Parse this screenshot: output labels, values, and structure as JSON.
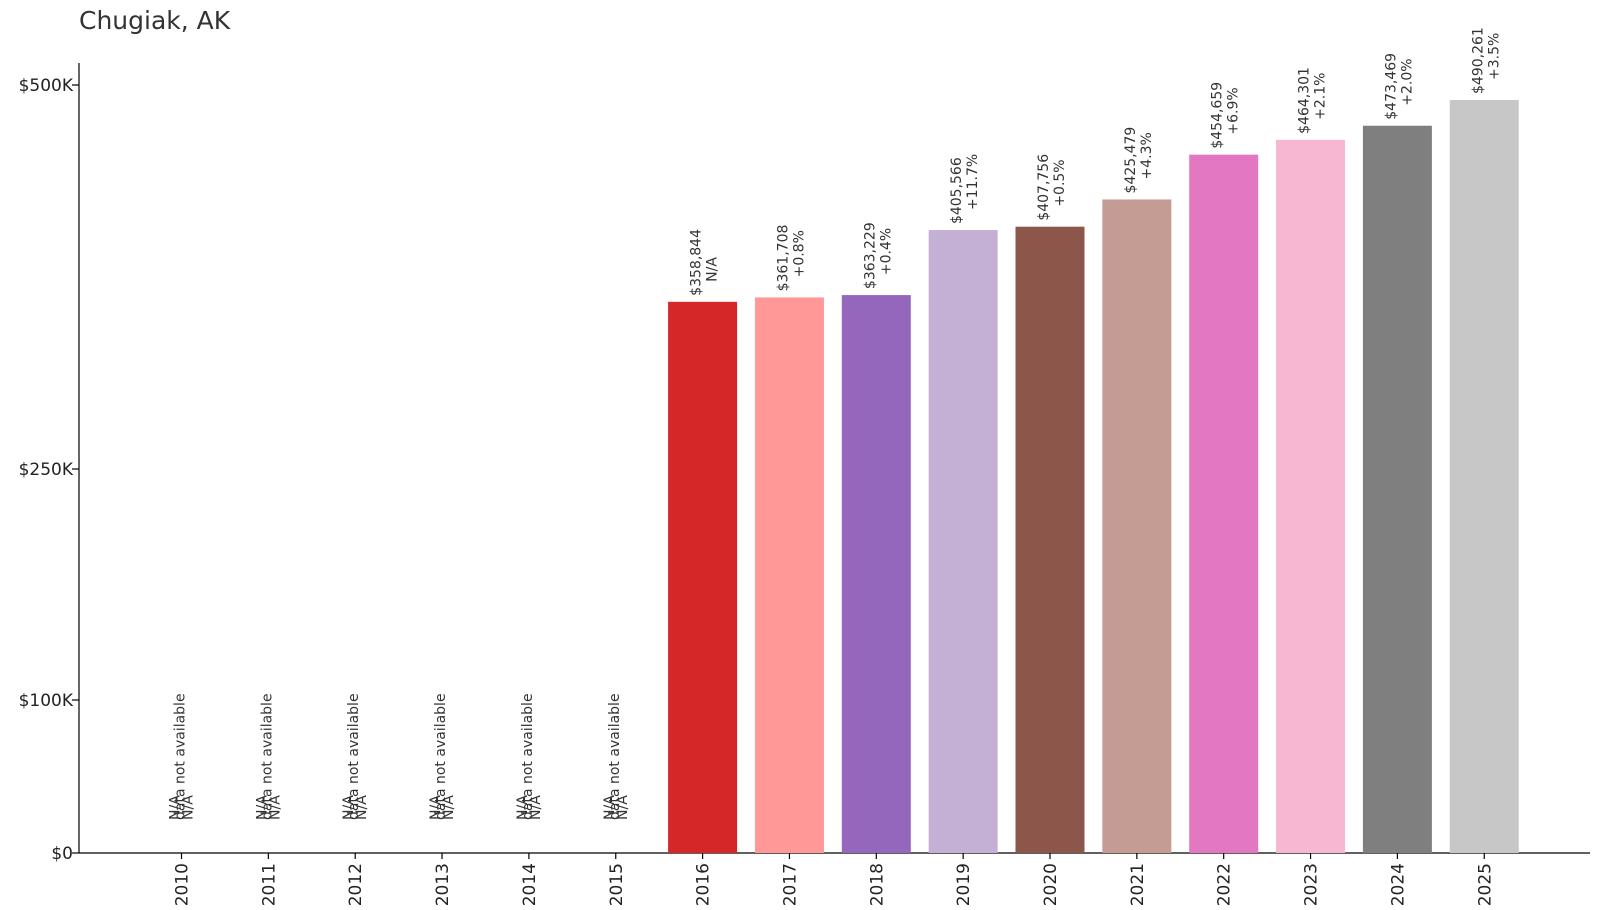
{
  "title": "Chugiak, AK",
  "chart_data": {
    "type": "bar",
    "title": "Chugiak, AK",
    "xlabel": "",
    "ylabel": "",
    "categories": [
      "2010",
      "2011",
      "2012",
      "2013",
      "2014",
      "2015",
      "2016",
      "2017",
      "2018",
      "2019",
      "2020",
      "2021",
      "2022",
      "2023",
      "2024",
      "2025"
    ],
    "values": [
      null,
      null,
      null,
      null,
      null,
      null,
      358844,
      361708,
      363229,
      405566,
      407756,
      425479,
      454659,
      464301,
      473469,
      490261
    ],
    "value_labels": [
      "N/A",
      "N/A",
      "N/A",
      "N/A",
      "N/A",
      "N/A",
      "$358,844",
      "$361,708",
      "$363,229",
      "$405,566",
      "$407,756",
      "$425,479",
      "$454,659",
      "$464,301",
      "$473,469",
      "$490,261"
    ],
    "change_labels": [
      "N/A",
      "N/A",
      "N/A",
      "N/A",
      "N/A",
      "N/A",
      "N/A",
      "+0.8%",
      "+0.4%",
      "+11.7%",
      "+0.5%",
      "+4.3%",
      "+6.9%",
      "+2.1%",
      "+2.0%",
      "+3.5%"
    ],
    "missing_label": "data not available",
    "colors": [
      "#1f77b4",
      "#aec7e8",
      "#ff7f0e",
      "#ffbb78",
      "#2ca02c",
      "#98df8a",
      "#d62728",
      "#ff9896",
      "#9467bd",
      "#c5b0d5",
      "#8c564b",
      "#c49c94",
      "#e377c2",
      "#f7b6d2",
      "#7f7f7f",
      "#c7c7c7"
    ],
    "yticks": [
      0,
      100000,
      250000,
      500000
    ],
    "ytick_labels": [
      "$0",
      "$100K",
      "$250K",
      "$500K"
    ],
    "ylim": [
      0,
      500000
    ],
    "y_scale": "symlog-like (non-linear)",
    "grid": false,
    "legend": "none"
  }
}
